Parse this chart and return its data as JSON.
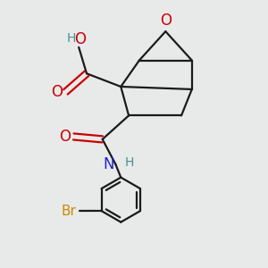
{
  "bg_color": "#e8eaea",
  "bond_color": "#1a1a1a",
  "O_color": "#cc0000",
  "N_color": "#2222cc",
  "H_color": "#4a8f8f",
  "Br_color": "#cc8800",
  "line_width": 1.6,
  "font_size_atom": 11,
  "fig_size": [
    3.0,
    3.0
  ],
  "dpi": 100,
  "xlim": [
    0,
    10
  ],
  "ylim": [
    0,
    10
  ]
}
